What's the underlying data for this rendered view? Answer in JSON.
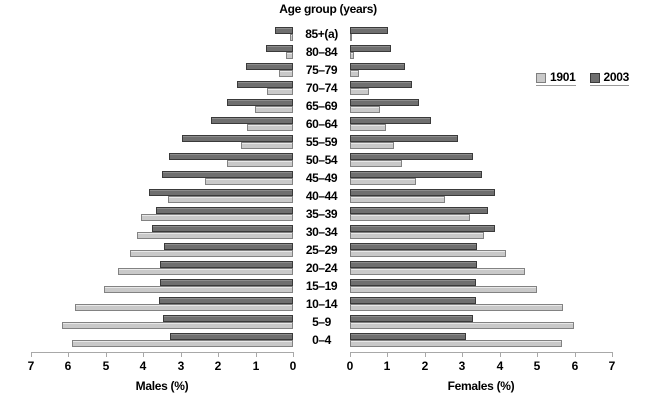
{
  "title": "Age group (years)",
  "legend": {
    "items": [
      {
        "label": "1901",
        "fill": "#c9c9c9",
        "border": "#7f7f7f"
      },
      {
        "label": "2003",
        "fill": "#6f6f6f",
        "border": "#3a3a3a"
      }
    ]
  },
  "axis": {
    "males_label": "Males (%)",
    "females_label": "Females (%)",
    "male_ticks": [
      7,
      6,
      5,
      4,
      3,
      2,
      1,
      0
    ],
    "female_ticks": [
      0,
      1,
      2,
      3,
      4,
      5,
      6,
      7
    ]
  },
  "colors": {
    "series_1901": "#c9c9c9",
    "series_2003": "#6f6f6f",
    "axis": "#a8a8a8",
    "text": "#000000"
  },
  "chart_data": {
    "type": "bar",
    "subtype": "population_pyramid",
    "title": "Age group (years)",
    "xlabel_left": "Males (%)",
    "xlabel_right": "Females (%)",
    "xlim": [
      0,
      7
    ],
    "grid": false,
    "legend_position": "right",
    "legend_entries": [
      "1901",
      "2003"
    ],
    "categories": [
      "85+(a)",
      "80–84",
      "75–79",
      "70–74",
      "65–69",
      "60–64",
      "55–59",
      "50–54",
      "45–49",
      "40–44",
      "35–39",
      "30–34",
      "25–29",
      "20–24",
      "15–19",
      "10–14",
      "5–9",
      "0–4"
    ],
    "series": [
      {
        "name": "1901",
        "side": "males",
        "values": [
          0.07,
          0.19,
          0.37,
          0.69,
          1.02,
          1.23,
          1.39,
          1.77,
          2.35,
          3.35,
          4.06,
          4.18,
          4.36,
          4.67,
          5.04,
          5.82,
          6.17,
          5.9
        ]
      },
      {
        "name": "2003",
        "side": "males",
        "values": [
          0.48,
          0.72,
          1.26,
          1.5,
          1.76,
          2.19,
          2.96,
          3.31,
          3.5,
          3.84,
          3.67,
          3.78,
          3.45,
          3.55,
          3.55,
          3.58,
          3.46,
          3.29
        ]
      },
      {
        "name": "1901",
        "side": "females",
        "values": [
          0.05,
          0.11,
          0.25,
          0.51,
          0.79,
          0.97,
          1.18,
          1.4,
          1.76,
          2.53,
          3.2,
          3.58,
          4.16,
          4.67,
          5.0,
          5.69,
          5.98,
          5.67
        ]
      },
      {
        "name": "2003",
        "side": "females",
        "values": [
          1.02,
          1.1,
          1.47,
          1.65,
          1.84,
          2.16,
          2.88,
          3.29,
          3.53,
          3.87,
          3.69,
          3.87,
          3.4,
          3.39,
          3.37,
          3.37,
          3.28,
          3.09
        ]
      }
    ]
  }
}
